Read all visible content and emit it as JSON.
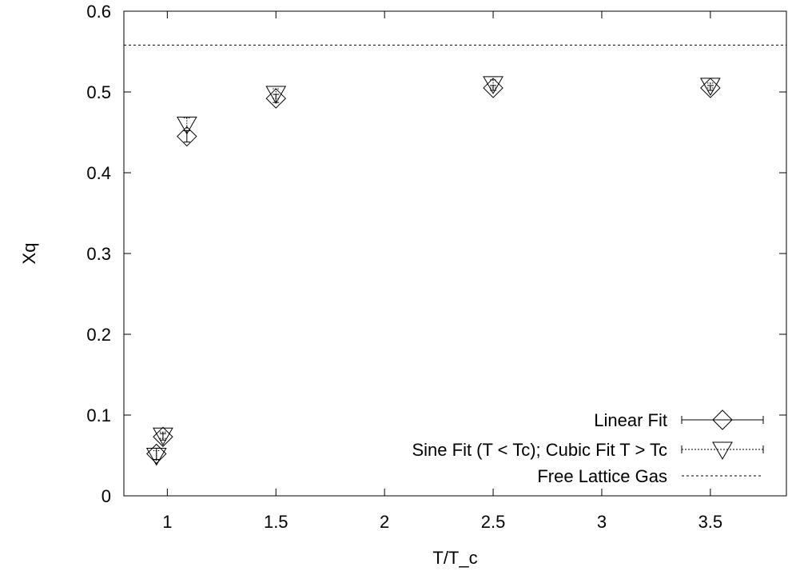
{
  "chart_data": {
    "type": "scatter",
    "title": "",
    "xlabel": "T/T_c",
    "ylabel": "Xq",
    "xlim": [
      0.8,
      3.85
    ],
    "ylim": [
      0,
      0.6
    ],
    "xticks": [
      1,
      1.5,
      2,
      2.5,
      3,
      3.5
    ],
    "xtick_labels": [
      "1",
      "1.5",
      "2",
      "2.5",
      "3",
      "3.5"
    ],
    "yticks": [
      0,
      0.1,
      0.2,
      0.3,
      0.4,
      0.5,
      0.6
    ],
    "ytick_labels": [
      "0",
      "0.1",
      "0.2",
      "0.3",
      "0.4",
      "0.5",
      "0.6"
    ],
    "grid": false,
    "legend_position": "bottom-right",
    "series": [
      {
        "name": "Linear Fit",
        "marker": "diamond",
        "line_style": "solid",
        "points": [
          {
            "x": 0.95,
            "y": 0.052,
            "err": 0.007
          },
          {
            "x": 0.98,
            "y": 0.073,
            "err": 0.004
          },
          {
            "x": 1.09,
            "y": 0.445,
            "err": 0.007
          },
          {
            "x": 1.5,
            "y": 0.492,
            "err": 0.005
          },
          {
            "x": 2.5,
            "y": 0.505,
            "err": 0.003
          },
          {
            "x": 3.5,
            "y": 0.505,
            "err": 0.003
          }
        ]
      },
      {
        "name": "Sine Fit (T < Tc); Cubic Fit T > Tc",
        "marker": "triangle-down",
        "line_style": "dotted",
        "points": [
          {
            "x": 0.95,
            "y": 0.05,
            "err": 0.006
          },
          {
            "x": 0.98,
            "y": 0.075,
            "err": 0.004
          },
          {
            "x": 1.09,
            "y": 0.46,
            "err": 0.008
          },
          {
            "x": 1.5,
            "y": 0.498,
            "err": 0.006
          },
          {
            "x": 2.5,
            "y": 0.51,
            "err": 0.005
          },
          {
            "x": 3.5,
            "y": 0.508,
            "err": 0.003
          }
        ]
      },
      {
        "name": "Free Lattice Gas",
        "marker": "none",
        "line_style": "dashed",
        "value": 0.558
      }
    ]
  }
}
